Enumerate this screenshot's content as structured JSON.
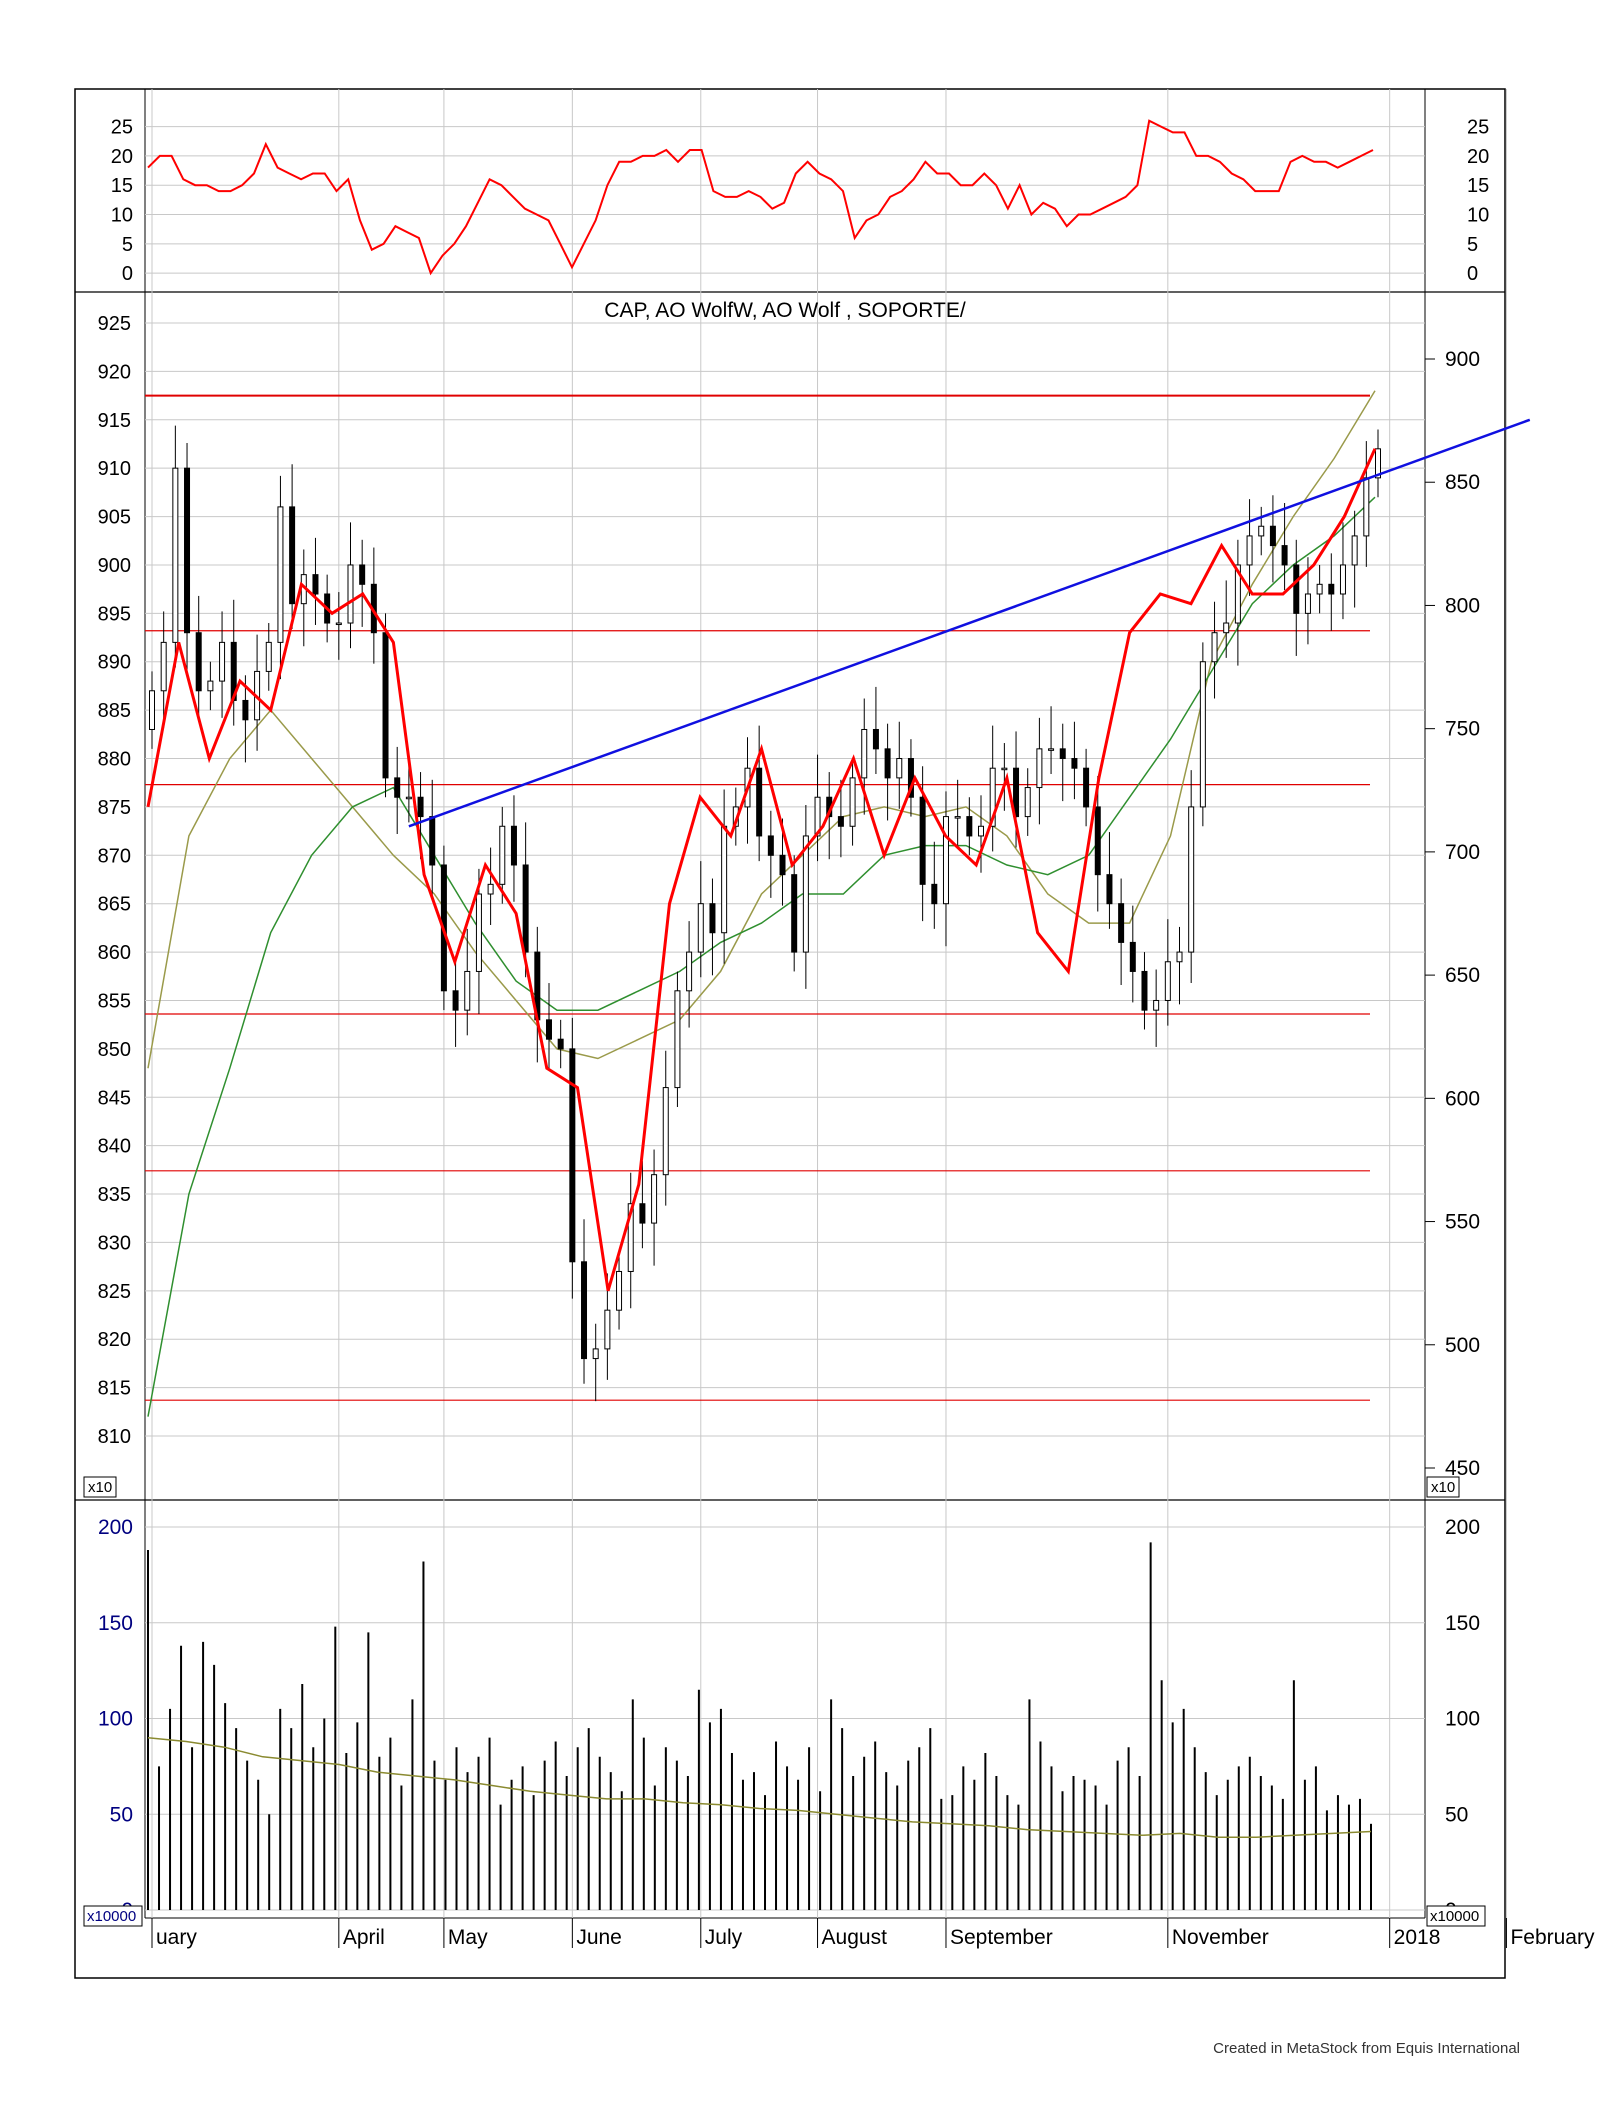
{
  "credit": "Created in MetaStock from Equis International",
  "colors": {
    "price_candle": "#000000",
    "indicator_line": "#ff0000",
    "smooth_line": "#ff0000",
    "ma_short": "#9a9a4a",
    "ma_long": "#2f8f2f",
    "trendline": "#1010e0",
    "support_lines": "#e00000",
    "volume_bars": "#000000",
    "volume_ma": "#8a8a30",
    "grid": "#c8c8c8",
    "volume_axis_text": "#000080"
  },
  "chart_data": [
    {
      "id": "indicator",
      "type": "line",
      "yticks": [
        0,
        5,
        10,
        15,
        20,
        25
      ],
      "ylim": [
        -1,
        28
      ],
      "series": [
        {
          "values": [
            18,
            20,
            20,
            16,
            15,
            15,
            14,
            14,
            15,
            17,
            22,
            18,
            17,
            16,
            17,
            17,
            14,
            16,
            9,
            4,
            5,
            8,
            7,
            6,
            0,
            3,
            5,
            8,
            12,
            16,
            15,
            13,
            11,
            10,
            9,
            5,
            1,
            5,
            9,
            15,
            19,
            19,
            20,
            20,
            21,
            19,
            21,
            21,
            14,
            13,
            13,
            14,
            13,
            11,
            12,
            17,
            19,
            17,
            16,
            14,
            6,
            9,
            10,
            13,
            14,
            16,
            19,
            17,
            17,
            15,
            15,
            17,
            15,
            11,
            15,
            10,
            12,
            11,
            8,
            10,
            10,
            11,
            12,
            13,
            15,
            26,
            25,
            24,
            24,
            20,
            20,
            19,
            17,
            16,
            14,
            14,
            14,
            19,
            20,
            19,
            19,
            18,
            19,
            20,
            21
          ]
        }
      ]
    },
    {
      "id": "price",
      "type": "candlestick",
      "title": "CAP, AO WolfW, AO Wolf , SOPORTE/",
      "left_yticks": [
        810,
        815,
        820,
        825,
        830,
        835,
        840,
        845,
        850,
        855,
        860,
        865,
        870,
        875,
        880,
        885,
        890,
        895,
        900,
        905,
        910,
        915,
        920,
        925
      ],
      "right_yticks": [
        450,
        500,
        550,
        600,
        650,
        700,
        750,
        800,
        850,
        900
      ],
      "ylim": [
        806,
        928
      ],
      "left_scale_label": "x10",
      "right_scale_label": "x10",
      "xticks": [
        {
          "label": "uary",
          "i": 0
        },
        {
          "label": "April",
          "i": 16
        },
        {
          "label": "May",
          "i": 25
        },
        {
          "label": "June",
          "i": 36
        },
        {
          "label": "July",
          "i": 47
        },
        {
          "label": "August",
          "i": 57
        },
        {
          "label": "September",
          "i": 68
        },
        {
          "label": "November",
          "i": 87
        },
        {
          "label": "2018",
          "i": 106
        },
        {
          "label": "February",
          "i": 116
        }
      ],
      "closes": [
        887,
        892,
        910,
        893,
        887,
        888,
        892,
        886,
        884,
        889,
        892,
        906,
        896,
        899,
        897,
        894,
        894,
        900,
        898,
        893,
        878,
        876,
        876,
        874,
        869,
        856,
        854,
        858,
        866,
        867,
        873,
        869,
        860,
        853,
        851,
        850,
        828,
        818,
        819,
        823,
        827,
        834,
        832,
        837,
        846,
        856,
        860,
        865,
        862,
        873,
        875,
        879,
        872,
        870,
        868,
        860,
        872,
        876,
        874,
        873,
        878,
        883,
        881,
        878,
        880,
        876,
        867,
        865,
        874,
        874,
        872,
        873,
        879,
        879,
        874,
        877,
        881,
        881,
        880,
        879,
        875,
        868,
        865,
        861,
        858,
        854,
        855,
        859,
        860,
        875,
        890,
        893,
        894,
        900,
        903,
        904,
        902,
        900,
        895,
        897,
        898,
        897,
        900,
        903,
        909,
        912
      ],
      "smooth": [
        875,
        892,
        880,
        888,
        885,
        898,
        895,
        897,
        892,
        868,
        859,
        869,
        864,
        848,
        846,
        825,
        836,
        865,
        876,
        872,
        881,
        869,
        873,
        880,
        870,
        878,
        872,
        869,
        878,
        862,
        858,
        878,
        893,
        897,
        896,
        902,
        897,
        897,
        900,
        905,
        912
      ],
      "ma_short": [
        848,
        872,
        880,
        885,
        880,
        875,
        870,
        866,
        860,
        855,
        850,
        849,
        851,
        853,
        858,
        866,
        870,
        874,
        875,
        874,
        875,
        872,
        866,
        863,
        863,
        872,
        890,
        898,
        905,
        911,
        918
      ],
      "ma_long": [
        812,
        835,
        848,
        862,
        870,
        875,
        877,
        870,
        863,
        857,
        854,
        854,
        856,
        858,
        861,
        863,
        866,
        866,
        870,
        871,
        871,
        869,
        868,
        870,
        876,
        882,
        889,
        896,
        900,
        903,
        907
      ],
      "support_lines": [
        917.5,
        893.2,
        877.3,
        853.6,
        837.4,
        813.7
      ],
      "trendline": {
        "start": {
          "i": 22,
          "y": 873
        },
        "end": {
          "i": 118,
          "y": 915
        }
      }
    },
    {
      "id": "volume",
      "type": "bar",
      "yticks": [
        0,
        50,
        100,
        150,
        200
      ],
      "ylim": [
        0,
        205
      ],
      "left_scale_label": "x10000",
      "right_scale_label": "x10000",
      "values": [
        188,
        75,
        105,
        138,
        85,
        140,
        128,
        108,
        95,
        78,
        68,
        50,
        105,
        95,
        118,
        85,
        100,
        148,
        82,
        98,
        145,
        80,
        90,
        65,
        110,
        182,
        78,
        68,
        85,
        72,
        80,
        90,
        55,
        68,
        75,
        60,
        78,
        88,
        70,
        85,
        95,
        80,
        72,
        62,
        110,
        90,
        65,
        85,
        78,
        70,
        115,
        98,
        105,
        82,
        68,
        72,
        60,
        88,
        75,
        68,
        85,
        62,
        110,
        95,
        70,
        80,
        88,
        72,
        65,
        78,
        85,
        95,
        58,
        60,
        75,
        68,
        82,
        70,
        60,
        55,
        110,
        88,
        75,
        62,
        70,
        68,
        65,
        55,
        78,
        85,
        70,
        192,
        120,
        98,
        105,
        85,
        72,
        60,
        68,
        75,
        80,
        70,
        65,
        58,
        120,
        68,
        75,
        52,
        60,
        55,
        58,
        45
      ],
      "ma": [
        90,
        88,
        85,
        80,
        78,
        76,
        72,
        70,
        68,
        65,
        62,
        60,
        58,
        58,
        56,
        55,
        53,
        52,
        50,
        48,
        46,
        45,
        44,
        42,
        41,
        40,
        39,
        40,
        38,
        38,
        39,
        40,
        41
      ]
    }
  ]
}
